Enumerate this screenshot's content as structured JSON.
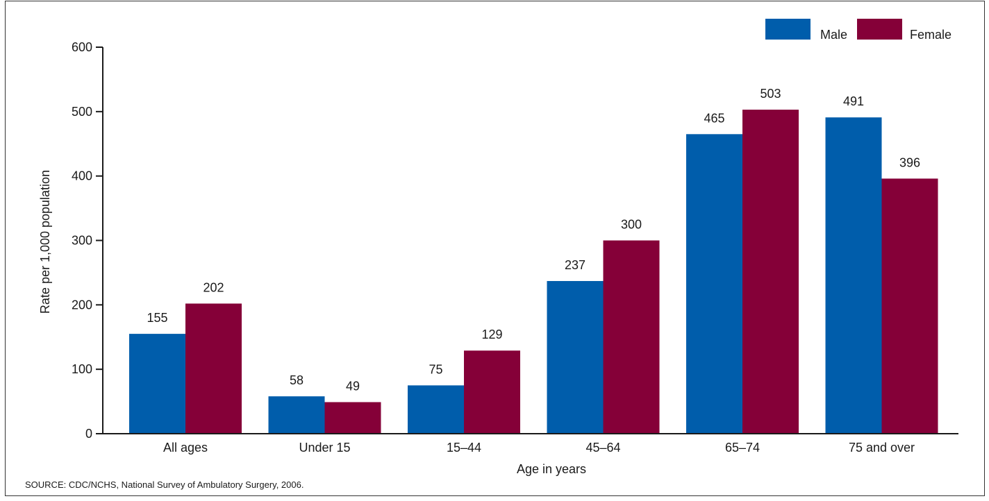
{
  "chart_data": {
    "type": "bar",
    "categories": [
      "All ages",
      "Under 15",
      "15–44",
      "45–64",
      "65–74",
      "75 and over"
    ],
    "series": [
      {
        "name": "Male",
        "values": [
          155,
          58,
          75,
          237,
          465,
          491
        ]
      },
      {
        "name": "Female",
        "values": [
          202,
          49,
          129,
          300,
          503,
          396
        ]
      }
    ],
    "xlabel": "Age in years",
    "ylabel": "Rate per 1,000 population",
    "ylim": [
      0,
      600
    ],
    "yticks": [
      0,
      100,
      200,
      300,
      400,
      500,
      600
    ],
    "grid": false,
    "legend": "top-right",
    "colors": {
      "Male": "#005dab",
      "Female": "#850038"
    }
  },
  "source": "SOURCE: CDC/NCHS, National Survey of Ambulatory Surgery, 2006."
}
